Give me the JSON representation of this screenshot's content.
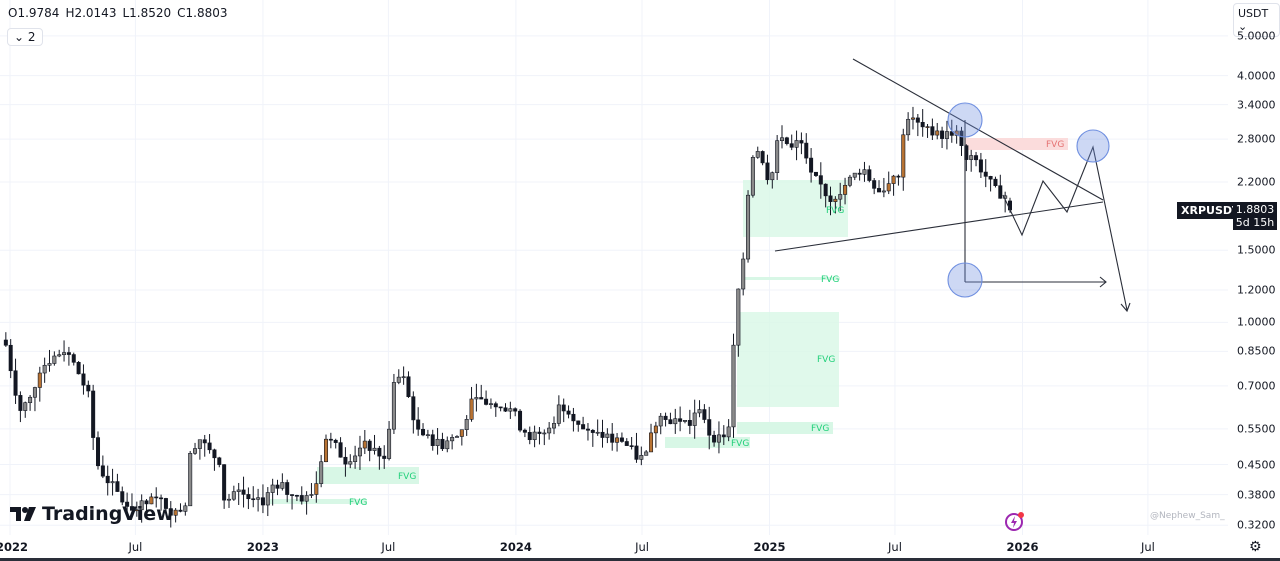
{
  "header": {
    "ohlc": {
      "open": "O1.9784",
      "high": "H2.0143",
      "low": "L1.8520",
      "close": "C1.8803"
    },
    "indicator_toggle": "2",
    "currency": "USDT"
  },
  "symbol": {
    "name": "XRPUSDT",
    "last_price": "1.8803",
    "countdown": "5d 15h"
  },
  "logo": "TradingView",
  "watermark": "@Nephew_Sam_",
  "colors": {
    "up_body": "#8a8a8a",
    "down_body": "#131722",
    "fvg_bull": "#d8f7e6",
    "fvg_bull_text": "#22d07a",
    "fvg_bear": "#fbdcdc",
    "fvg_bear_text": "#e57373",
    "circle": "#6f8fe0",
    "grid": "#f0f3fa"
  },
  "annotations": {
    "fvg_label": "FVG"
  },
  "chart_data": {
    "type": "candlestick",
    "interval": "weekly",
    "y_scale": "log",
    "ylim": [
      0.3,
      5.3
    ],
    "grid": true,
    "y_ticks": [
      "5.0000",
      "4.0000",
      "3.4000",
      "2.8000",
      "2.2000",
      "1.5000",
      "1.2000",
      "1.0000",
      "0.8500",
      "0.7000",
      "0.5500",
      "0.4500",
      "0.3800",
      "0.3200"
    ],
    "x_ticks": [
      {
        "label": "2022",
        "date": "2022-01-01"
      },
      {
        "label": "Jul",
        "date": "2022-07-01"
      },
      {
        "label": "2023",
        "date": "2023-01-01"
      },
      {
        "label": "Jul",
        "date": "2023-07-01"
      },
      {
        "label": "2024",
        "date": "2024-01-01"
      },
      {
        "label": "Jul",
        "date": "2024-07-01"
      },
      {
        "label": "2025",
        "date": "2025-01-01"
      },
      {
        "label": "Jul",
        "date": "2025-07-01"
      },
      {
        "label": "2026",
        "date": "2026-01-01"
      },
      {
        "label": "Jul",
        "date": "2026-07-01"
      }
    ],
    "approx_closes": [
      [
        "2021-12-26",
        0.88
      ],
      [
        "2022-01-15",
        0.61
      ],
      [
        "2022-01-30",
        0.65
      ],
      [
        "2022-02-13",
        0.77
      ],
      [
        "2022-02-27",
        0.81
      ],
      [
        "2022-03-21",
        0.86
      ],
      [
        "2022-03-31",
        0.81
      ],
      [
        "2022-04-12",
        0.74
      ],
      [
        "2022-04-26",
        0.65
      ],
      [
        "2022-05-04",
        0.46
      ],
      [
        "2022-05-18",
        0.42
      ],
      [
        "2022-06-02",
        0.39
      ],
      [
        "2022-06-16",
        0.36
      ],
      [
        "2022-06-30",
        0.35
      ],
      [
        "2022-07-15",
        0.36
      ],
      [
        "2022-07-29",
        0.37
      ],
      [
        "2022-08-13",
        0.36
      ],
      [
        "2022-08-27",
        0.34
      ],
      [
        "2022-09-11",
        0.36
      ],
      [
        "2022-09-18",
        0.49
      ],
      [
        "2022-10-02",
        0.52
      ],
      [
        "2022-10-17",
        0.48
      ],
      [
        "2022-10-31",
        0.46
      ],
      [
        "2022-11-07",
        0.36
      ],
      [
        "2022-11-22",
        0.39
      ],
      [
        "2022-12-06",
        0.38
      ],
      [
        "2022-12-21",
        0.36
      ],
      [
        "2023-01-04",
        0.37
      ],
      [
        "2023-01-18",
        0.41
      ],
      [
        "2023-02-02",
        0.39
      ],
      [
        "2023-02-16",
        0.38
      ],
      [
        "2023-03-03",
        0.37
      ],
      [
        "2023-03-17",
        0.39
      ],
      [
        "2023-03-24",
        0.45
      ],
      [
        "2023-04-01",
        0.52
      ],
      [
        "2023-04-15",
        0.5
      ],
      [
        "2023-04-29",
        0.46
      ],
      [
        "2023-05-14",
        0.48
      ],
      [
        "2023-05-28",
        0.5
      ],
      [
        "2023-06-12",
        0.49
      ],
      [
        "2023-06-26",
        0.46
      ],
      [
        "2023-07-11",
        0.74
      ],
      [
        "2023-07-25",
        0.72
      ],
      [
        "2023-08-01",
        0.63
      ],
      [
        "2023-08-16",
        0.52
      ],
      [
        "2023-08-30",
        0.52
      ],
      [
        "2023-09-13",
        0.5
      ],
      [
        "2023-09-28",
        0.52
      ],
      [
        "2023-10-12",
        0.53
      ],
      [
        "2023-10-27",
        0.63
      ],
      [
        "2023-11-10",
        0.65
      ],
      [
        "2023-11-25",
        0.63
      ],
      [
        "2023-12-09",
        0.61
      ],
      [
        "2023-12-23",
        0.63
      ],
      [
        "2024-01-07",
        0.56
      ],
      [
        "2024-01-21",
        0.53
      ],
      [
        "2024-02-05",
        0.53
      ],
      [
        "2024-02-19",
        0.55
      ],
      [
        "2024-03-05",
        0.63
      ],
      [
        "2024-03-19",
        0.61
      ],
      [
        "2024-04-03",
        0.56
      ],
      [
        "2024-04-17",
        0.53
      ],
      [
        "2024-05-01",
        0.53
      ],
      [
        "2024-05-16",
        0.52
      ],
      [
        "2024-05-30",
        0.52
      ],
      [
        "2024-06-14",
        0.49
      ],
      [
        "2024-06-28",
        0.46
      ],
      [
        "2024-07-13",
        0.52
      ],
      [
        "2024-07-27",
        0.61
      ],
      [
        "2024-08-10",
        0.58
      ],
      [
        "2024-08-25",
        0.58
      ],
      [
        "2024-09-08",
        0.56
      ],
      [
        "2024-09-23",
        0.63
      ],
      [
        "2024-10-07",
        0.53
      ],
      [
        "2024-10-22",
        0.52
      ],
      [
        "2024-11-05",
        0.55
      ],
      [
        "2024-11-12",
        1.04
      ],
      [
        "2024-11-19",
        1.27
      ],
      [
        "2024-11-27",
        1.59
      ],
      [
        "2024-12-04",
        2.56
      ],
      [
        "2024-12-18",
        2.63
      ],
      [
        "2025-01-02",
        2.17
      ],
      [
        "2025-01-16",
        2.95
      ],
      [
        "2025-01-31",
        2.63
      ],
      [
        "2025-02-14",
        2.79
      ],
      [
        "2025-02-28",
        2.29
      ],
      [
        "2025-03-15",
        2.17
      ],
      [
        "2025-03-29",
        1.99
      ],
      [
        "2025-04-13",
        2.1
      ],
      [
        "2025-04-27",
        2.23
      ],
      [
        "2025-05-12",
        2.36
      ],
      [
        "2025-05-26",
        2.23
      ],
      [
        "2025-06-09",
        2.1
      ],
      [
        "2025-06-24",
        2.17
      ],
      [
        "2025-07-08",
        2.29
      ],
      [
        "2025-07-16",
        3.24
      ],
      [
        "2025-07-30",
        3.07
      ],
      [
        "2025-08-13",
        2.95
      ],
      [
        "2025-08-28",
        2.87
      ],
      [
        "2025-09-11",
        2.87
      ],
      [
        "2025-09-26",
        2.95
      ],
      [
        "2025-10-10",
        2.49
      ],
      [
        "2025-10-25",
        2.49
      ],
      [
        "2025-11-08",
        2.29
      ],
      [
        "2025-11-22",
        2.1
      ],
      [
        "2025-12-07",
        2.04
      ],
      [
        "2025-12-20",
        1.88
      ]
    ],
    "last_candle": {
      "open": 1.9784,
      "high": 2.0143,
      "low": 1.852,
      "close": 1.8803
    }
  }
}
